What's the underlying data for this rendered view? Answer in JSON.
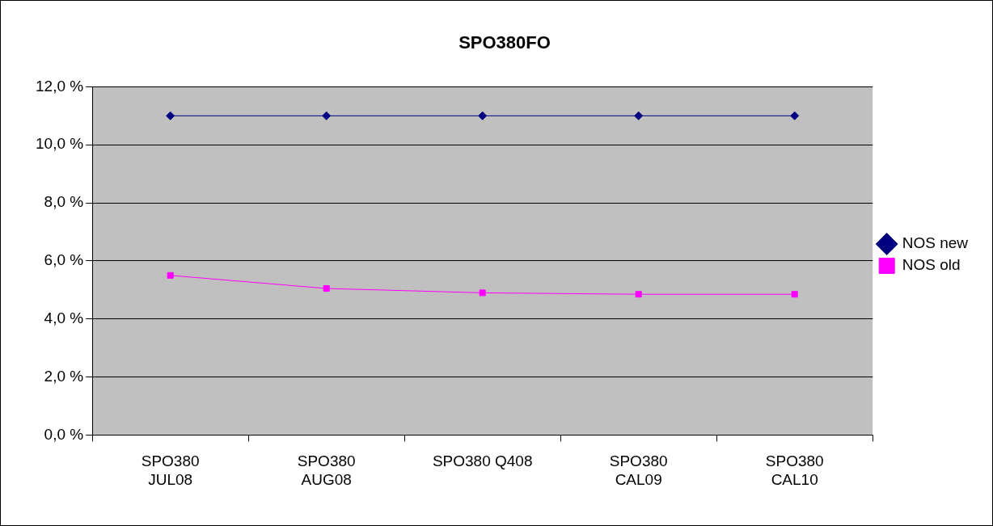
{
  "chart_data": {
    "type": "line",
    "title": "SPO380FO",
    "categories": [
      "SPO380\nJUL08",
      "SPO380\nAUG08",
      "SPO380 Q408",
      "SPO380\nCAL09",
      "SPO380\nCAL10"
    ],
    "series": [
      {
        "name": "NOS new",
        "color": "#000080",
        "marker": "diamond",
        "values": [
          11,
          11,
          11,
          11,
          11
        ]
      },
      {
        "name": "NOS old",
        "color": "#ff00ff",
        "marker": "square",
        "values": [
          5.5,
          5.05,
          4.9,
          4.85,
          4.85
        ]
      }
    ],
    "ylim": [
      0,
      12
    ],
    "yticks": [
      {
        "value": 0,
        "label": "0,0 %"
      },
      {
        "value": 2,
        "label": "2,0 %"
      },
      {
        "value": 4,
        "label": "4,0 %"
      },
      {
        "value": 6,
        "label": "6,0 %"
      },
      {
        "value": 8,
        "label": "8,0 %"
      },
      {
        "value": 10,
        "label": "10,0 %"
      },
      {
        "value": 12,
        "label": "12,0 %"
      }
    ],
    "grid": "y",
    "legend": "right",
    "line_style": "solid"
  }
}
